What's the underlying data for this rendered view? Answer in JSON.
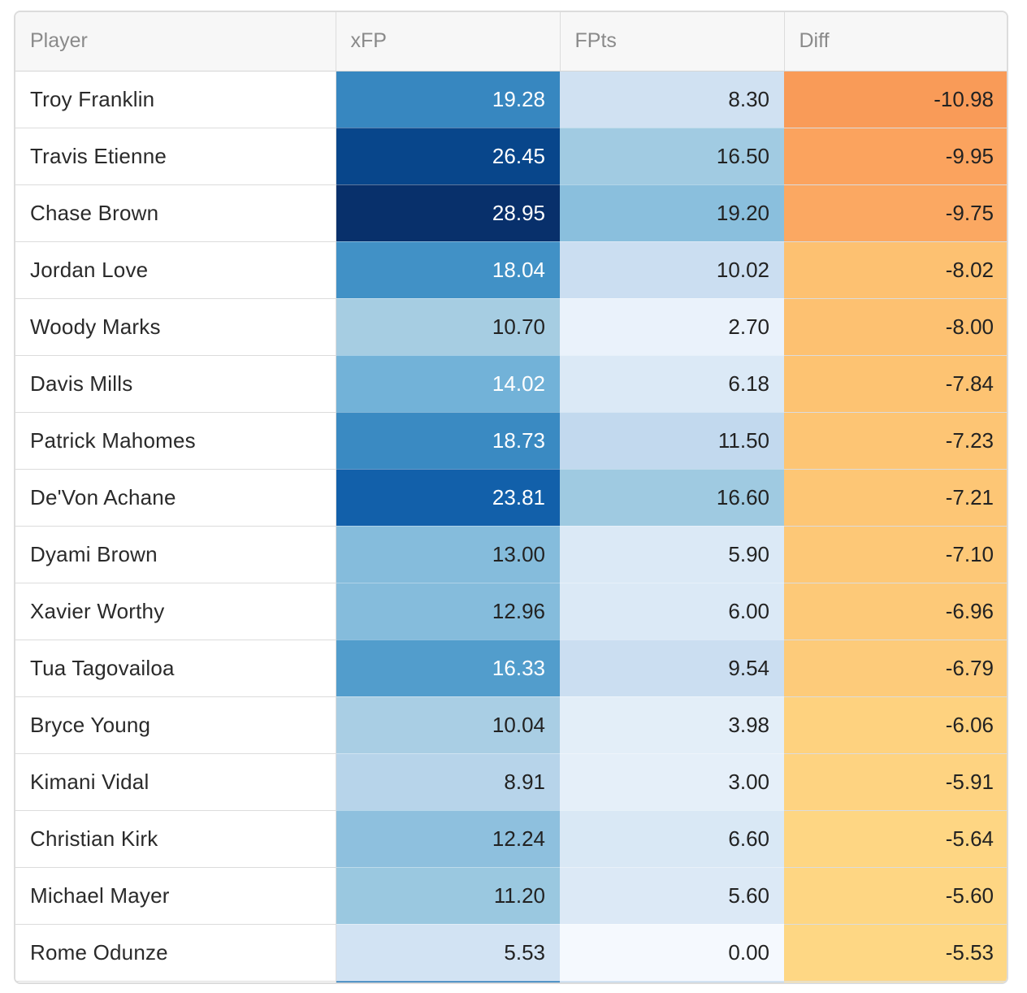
{
  "table": {
    "headers": {
      "player": "Player",
      "xfp": "xFP",
      "fpts": "FPts",
      "diff": "Diff"
    },
    "rows": [
      {
        "player": "Troy Franklin",
        "xfp": "19.28",
        "fpts": "8.30",
        "diff": "-10.98"
      },
      {
        "player": "Travis Etienne",
        "xfp": "26.45",
        "fpts": "16.50",
        "diff": "-9.95"
      },
      {
        "player": "Chase Brown",
        "xfp": "28.95",
        "fpts": "19.20",
        "diff": "-9.75"
      },
      {
        "player": "Jordan Love",
        "xfp": "18.04",
        "fpts": "10.02",
        "diff": "-8.02"
      },
      {
        "player": "Woody Marks",
        "xfp": "10.70",
        "fpts": "2.70",
        "diff": "-8.00"
      },
      {
        "player": "Davis Mills",
        "xfp": "14.02",
        "fpts": "6.18",
        "diff": "-7.84"
      },
      {
        "player": "Patrick Mahomes",
        "xfp": "18.73",
        "fpts": "11.50",
        "diff": "-7.23"
      },
      {
        "player": "De'Von Achane",
        "xfp": "23.81",
        "fpts": "16.60",
        "diff": "-7.21"
      },
      {
        "player": "Dyami Brown",
        "xfp": "13.00",
        "fpts": "5.90",
        "diff": "-7.10"
      },
      {
        "player": "Xavier Worthy",
        "xfp": "12.96",
        "fpts": "6.00",
        "diff": "-6.96"
      },
      {
        "player": "Tua Tagovailoa",
        "xfp": "16.33",
        "fpts": "9.54",
        "diff": "-6.79"
      },
      {
        "player": "Bryce Young",
        "xfp": "10.04",
        "fpts": "3.98",
        "diff": "-6.06"
      },
      {
        "player": "Kimani Vidal",
        "xfp": "8.91",
        "fpts": "3.00",
        "diff": "-5.91"
      },
      {
        "player": "Christian Kirk",
        "xfp": "12.24",
        "fpts": "6.60",
        "diff": "-5.64"
      },
      {
        "player": "Michael Mayer",
        "xfp": "11.20",
        "fpts": "5.60",
        "diff": "-5.60"
      },
      {
        "player": "Rome Odunze",
        "xfp": "5.53",
        "fpts": "0.00",
        "diff": "-5.53"
      }
    ]
  },
  "colors": {
    "xfp": [
      "#3787c0",
      "#08468b",
      "#08306b",
      "#4191c6",
      "#a6cde2",
      "#72b2d8",
      "#3a8ac2",
      "#1260aa",
      "#85bcdc",
      "#85bcdc",
      "#529dcc",
      "#a9cee4",
      "#b7d4ea",
      "#8ec0de",
      "#9ac8e0",
      "#d2e3f3"
    ],
    "xfp_text": [
      "#ffffff",
      "#ffffff",
      "#ffffff",
      "#ffffff",
      "#222222",
      "#ffffff",
      "#ffffff",
      "#ffffff",
      "#222222",
      "#222222",
      "#ffffff",
      "#222222",
      "#222222",
      "#222222",
      "#222222",
      "#222222"
    ],
    "fpts": [
      "#d0e1f2",
      "#a1cbe2",
      "#8abfdd",
      "#cbdef1",
      "#eaf2fb",
      "#dbe9f6",
      "#c2d9ee",
      "#9fcae1",
      "#dbe9f6",
      "#dbe9f6",
      "#cbdef1",
      "#e3eef8",
      "#e5eff9",
      "#d9e8f5",
      "#dce9f6",
      "#f5f9fe"
    ],
    "diff": [
      "#f99b58",
      "#fba35e",
      "#fba862",
      "#fdc171",
      "#fdc171",
      "#fdc372",
      "#fdc574",
      "#fdc675",
      "#fdc877",
      "#fdc978",
      "#fdcb7a",
      "#fed27f",
      "#fed381",
      "#fed683",
      "#fed683",
      "#fed784"
    ],
    "last_peek": {
      "xfp": "#2b7bba",
      "fpts": "#c6dbef",
      "diff": "#fee4a0"
    }
  }
}
